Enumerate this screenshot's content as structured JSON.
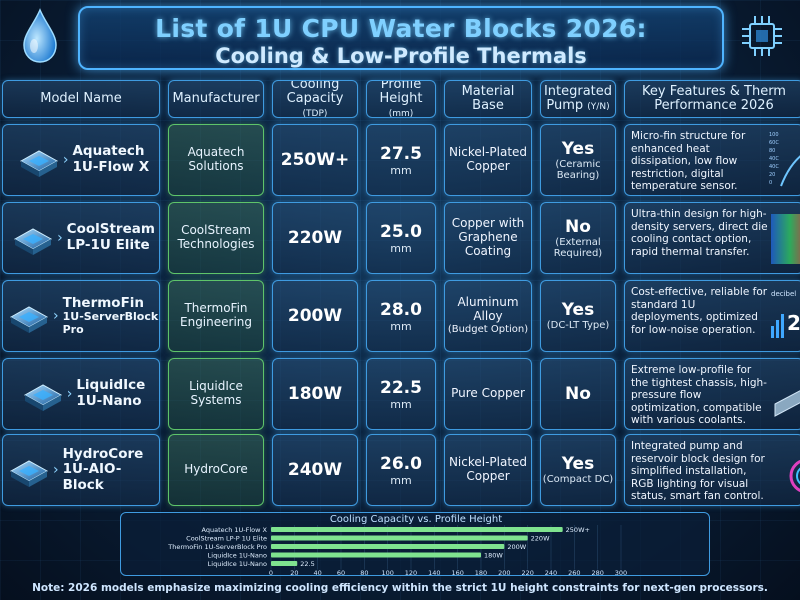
{
  "title": {
    "line1": "List of 1U CPU Water Blocks 2026:",
    "line2": "Cooling & Low-Profile Thermals"
  },
  "headers": {
    "model": "Model Name",
    "manufacturer": "Manufacturer",
    "cooling_main": "Cooling",
    "cooling_sub": "Capacity",
    "cooling_unit": "(TDP)",
    "profile_main": "Profile",
    "profile_sub": "Height",
    "profile_unit": "(mm)",
    "material_main": "Material",
    "material_sub": "Base",
    "pump_main": "Integrated",
    "pump_sub": "Pump",
    "pump_unit": "(Y/N)",
    "features_main": "Key Features & Therm",
    "features_sub": "Performance 2026"
  },
  "rows": [
    {
      "name1": "Aquatech",
      "name2": "1U-Flow X",
      "mfr1": "Aquatech",
      "mfr2": "Solutions",
      "cooling": "250W+",
      "height": "27.5",
      "height_unit": "mm",
      "mat1": "Nickel-Plated",
      "mat2": "Copper",
      "mat3": "",
      "pump": "Yes",
      "pump_note1": "(Ceramic",
      "pump_note2": "Bearing)",
      "features": "Micro-fin structure for enhanced heat dissipation, low flow restriction, digital temperature sensor.",
      "visual_ticks": [
        "100",
        "60C",
        "80",
        "40C",
        "40C",
        "20",
        "0"
      ]
    },
    {
      "name1": "CoolStream",
      "name2": "LP-1U Elite",
      "mfr1": "CoolStream",
      "mfr2": "Technologies",
      "cooling": "220W",
      "height": "25.0",
      "height_unit": "mm",
      "mat1": "Copper with",
      "mat2": "Graphene",
      "mat3": "Coating",
      "pump": "No",
      "pump_note1": "(External",
      "pump_note2": "Required)",
      "features": "Ultra-thin design for high-density servers, direct die cooling contact option, rapid thermal transfer."
    },
    {
      "name1": "ThermoFin",
      "name2": "1U-ServerBlock Pro",
      "mfr1": "ThermoFin",
      "mfr2": "Engineering",
      "cooling": "200W",
      "height": "28.0",
      "height_unit": "mm",
      "mat1": "Aluminum",
      "mat2": "Alloy",
      "mat3": "(Budget Option)",
      "pump": "Yes",
      "pump_note1": "(DC-LT Type)",
      "pump_note2": "",
      "features": "Cost-effective, reliable for standard 1U deployments, optimized for low-noise operation.",
      "visual_label": "decibel",
      "visual_value": "2"
    },
    {
      "name1": "LiquidIce",
      "name2": "1U-Nano",
      "mfr1": "LiquidIce",
      "mfr2": "Systems",
      "cooling": "180W",
      "height": "22.5",
      "height_unit": "mm",
      "mat1": "Pure Copper",
      "mat2": "",
      "mat3": "",
      "pump": "No",
      "pump_note1": "",
      "pump_note2": "",
      "features": "Extreme low-profile for the tightest chassis, high-pressure flow optimization, compatible with various coolants."
    },
    {
      "name1": "HydroCore",
      "name2": "1U-AIO-Block",
      "mfr1": "HydroCore",
      "mfr2": "",
      "cooling": "240W",
      "height": "26.0",
      "height_unit": "mm",
      "mat1": "Nickel-Plated",
      "mat2": "Copper",
      "mat3": "",
      "pump": "Yes",
      "pump_note1": "(Compact DC)",
      "pump_note2": "",
      "features": "Integrated pump and reservoir block design for simplified installation, RGB lighting for visual status, smart fan control."
    }
  ],
  "chart_data": {
    "type": "bar",
    "title": "Cooling Capacity vs. Profile Height",
    "categories": [
      "Aquatech 1U-Flow X",
      "CoolStream LP-P 1U Elite",
      "ThermoFin 1U-ServerBlock Pro",
      "LiquidIce 1U-Nano",
      "LiquidIce 1U-Nano"
    ],
    "values": [
      250,
      220,
      200,
      180,
      22.5
    ],
    "data_labels": [
      "250W+",
      "220W",
      "200W",
      "180W",
      "22.5"
    ],
    "xlim": [
      0,
      300
    ],
    "xticks": [
      0,
      20,
      40,
      60,
      80,
      100,
      120,
      140,
      160,
      180,
      200,
      220,
      240,
      260,
      280,
      300
    ],
    "bar_color": "#7fe38f"
  },
  "note": "Note: 2026 models emphasize maximizing cooling efficiency within the strict 1U height constraints for next-gen processors."
}
